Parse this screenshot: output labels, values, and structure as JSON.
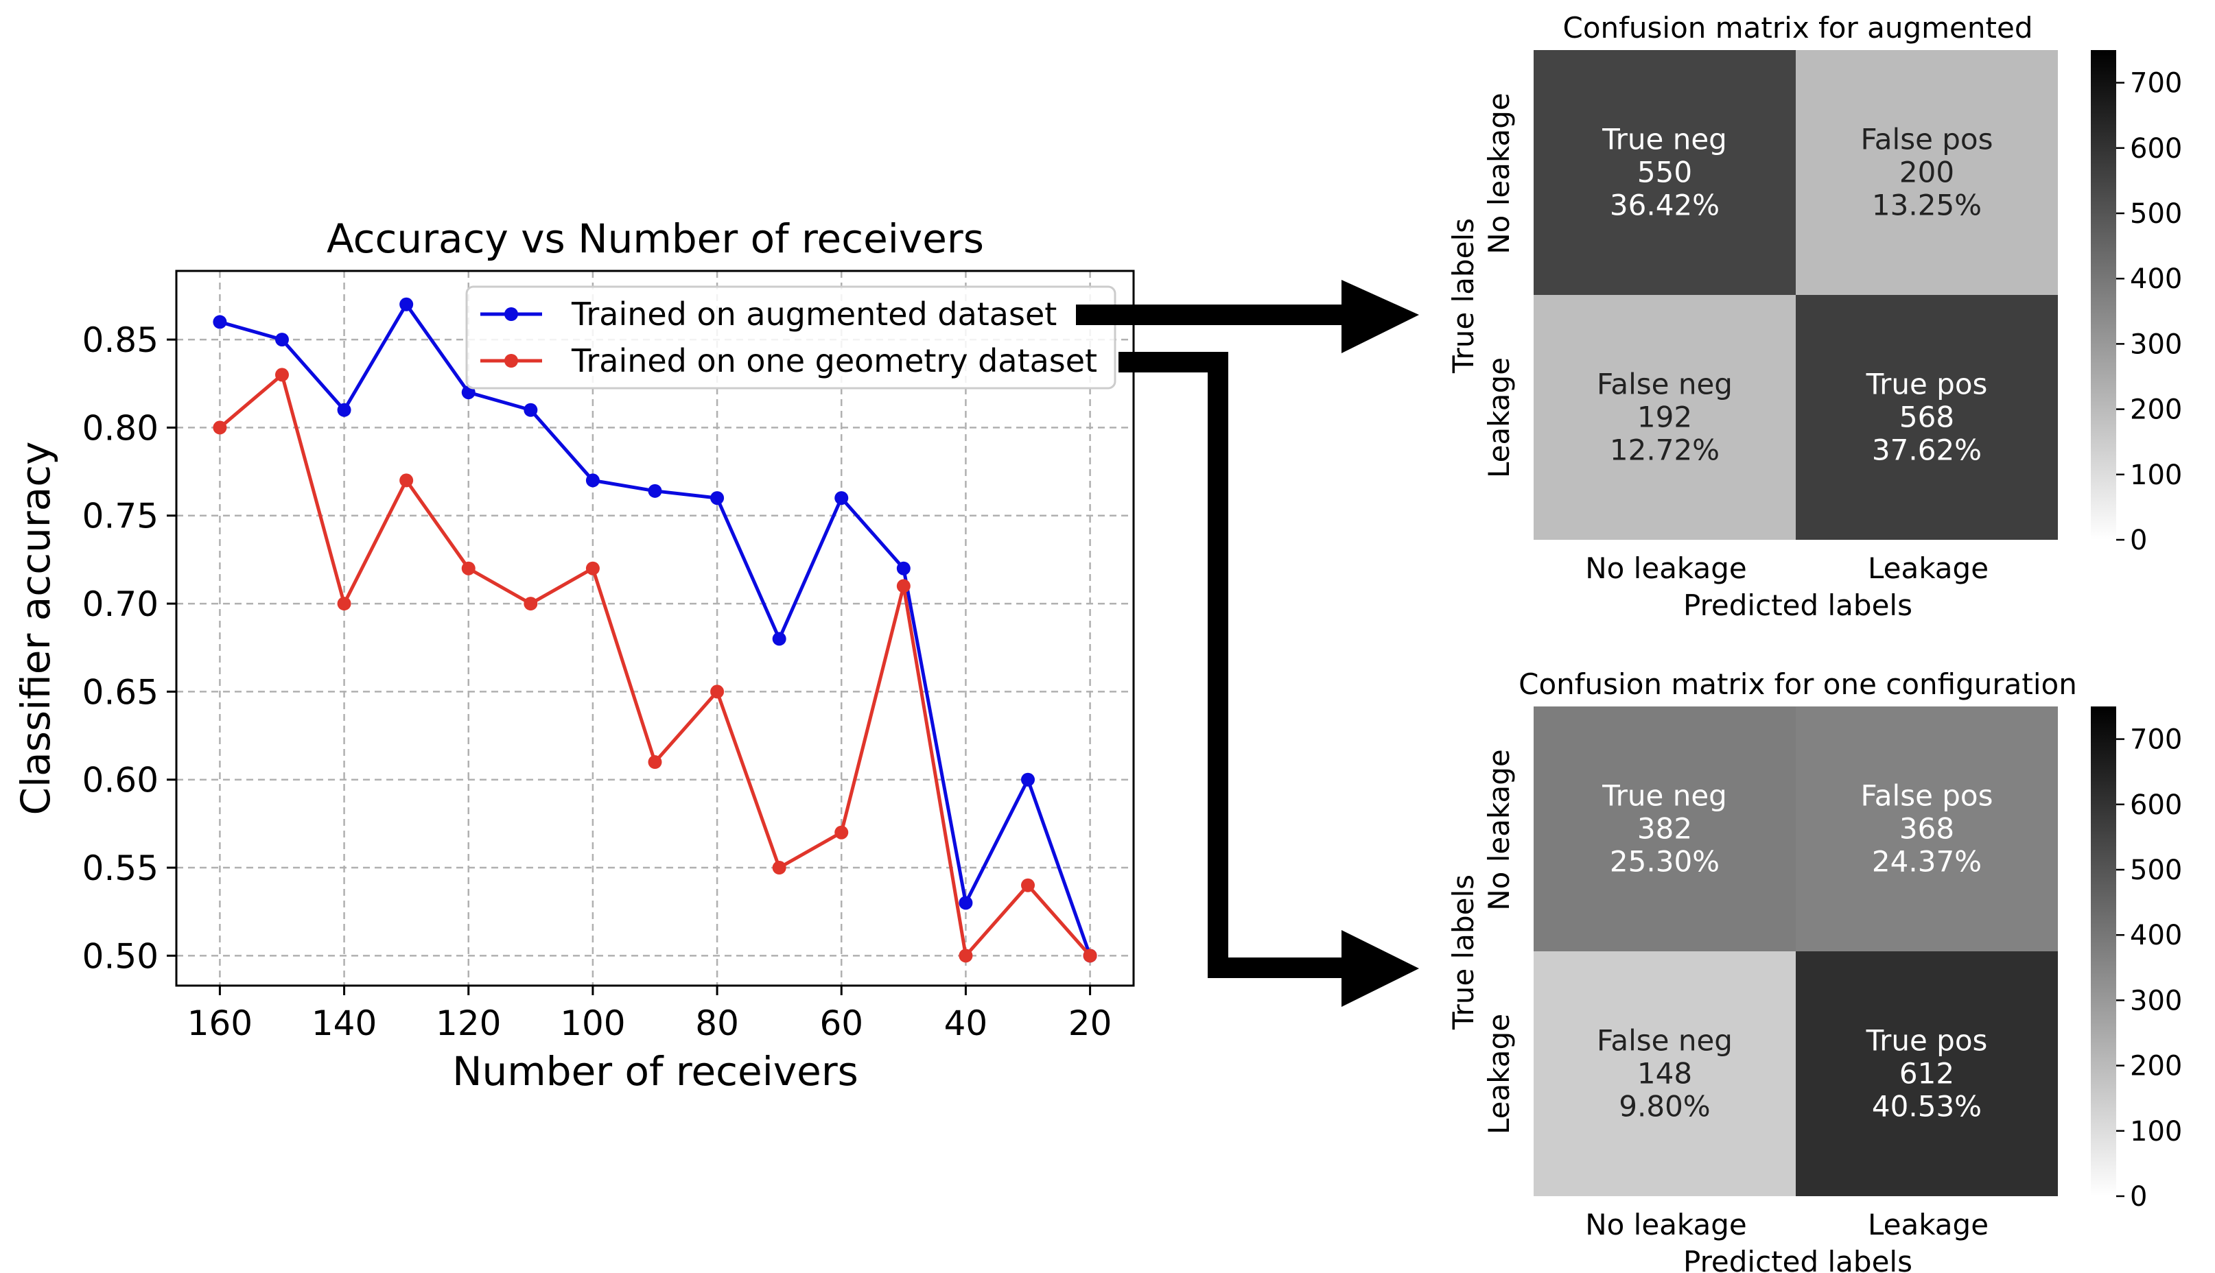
{
  "colors": {
    "augmented": "#0a0ae0",
    "one_geometry": "#e0352b",
    "grid": "#b0b0b0",
    "arrow": "#000000"
  },
  "chart_data": [
    {
      "type": "line",
      "title": "Accuracy vs Number of receivers",
      "xlabel": "Number of receivers",
      "ylabel": "Classifier accuracy",
      "x_inverted": true,
      "xlim": [
        167,
        13
      ],
      "ylim": [
        0.483,
        0.889
      ],
      "grid": true,
      "legend_position": "top-right",
      "x_ticks": [
        160,
        140,
        120,
        100,
        80,
        60,
        40,
        20
      ],
      "x_tick_labels": [
        "160",
        "140",
        "120",
        "100",
        "80",
        "60",
        "40",
        "20"
      ],
      "y_ticks": [
        0.5,
        0.55,
        0.6,
        0.65,
        0.7,
        0.75,
        0.8,
        0.85
      ],
      "y_tick_labels": [
        "0.50",
        "0.55",
        "0.60",
        "0.65",
        "0.70",
        "0.75",
        "0.80",
        "0.85"
      ],
      "x": [
        160,
        150,
        140,
        130,
        120,
        110,
        100,
        90,
        80,
        70,
        60,
        50,
        40,
        30,
        20
      ],
      "series": [
        {
          "name": "Trained on augmented dataset",
          "color": "#0a0ae0",
          "values": [
            0.86,
            0.85,
            0.81,
            0.87,
            0.82,
            0.81,
            0.77,
            0.764,
            0.76,
            0.68,
            0.76,
            0.72,
            0.53,
            0.6,
            0.5
          ]
        },
        {
          "name": "Trained on one geometry dataset",
          "color": "#e0352b",
          "values": [
            0.8,
            0.83,
            0.7,
            0.77,
            0.72,
            0.7,
            0.72,
            0.61,
            0.65,
            0.55,
            0.57,
            0.71,
            0.5,
            0.54,
            0.5
          ]
        }
      ]
    },
    {
      "type": "heatmap",
      "title": "Confusion matrix for augmented",
      "xlabel": "Predicted labels",
      "ylabel": "True labels",
      "col_labels": [
        "No leakage",
        "Leakage"
      ],
      "row_labels": [
        "No leakage",
        "Leakage"
      ],
      "cells": [
        [
          {
            "name": "True neg",
            "count": "550",
            "pct": "36.42%",
            "value": 550
          },
          {
            "name": "False pos",
            "count": "200",
            "pct": "13.25%",
            "value": 200
          }
        ],
        [
          {
            "name": "False neg",
            "count": "192",
            "pct": "12.72%",
            "value": 192
          },
          {
            "name": "True pos",
            "count": "568",
            "pct": "37.62%",
            "value": 568
          }
        ]
      ],
      "colorbar": {
        "min": 0,
        "max": 750,
        "ticks": [
          0,
          100,
          200,
          300,
          400,
          500,
          600,
          700
        ],
        "tick_labels": [
          "0",
          "100",
          "200",
          "300",
          "400",
          "500",
          "600",
          "700"
        ]
      }
    },
    {
      "type": "heatmap",
      "title": "Confusion matrix for one configuration",
      "xlabel": "Predicted labels",
      "ylabel": "True labels",
      "col_labels": [
        "No leakage",
        "Leakage"
      ],
      "row_labels": [
        "No leakage",
        "Leakage"
      ],
      "cells": [
        [
          {
            "name": "True neg",
            "count": "382",
            "pct": "25.30%",
            "value": 382
          },
          {
            "name": "False pos",
            "count": "368",
            "pct": "24.37%",
            "value": 368
          }
        ],
        [
          {
            "name": "False neg",
            "count": "148",
            "pct": "9.80%",
            "value": 148
          },
          {
            "name": "True pos",
            "count": "612",
            "pct": "40.53%",
            "value": 612
          }
        ]
      ],
      "colorbar": {
        "min": 0,
        "max": 750,
        "ticks": [
          0,
          100,
          200,
          300,
          400,
          500,
          600,
          700
        ],
        "tick_labels": [
          "0",
          "100",
          "200",
          "300",
          "400",
          "500",
          "600",
          "700"
        ]
      }
    }
  ]
}
